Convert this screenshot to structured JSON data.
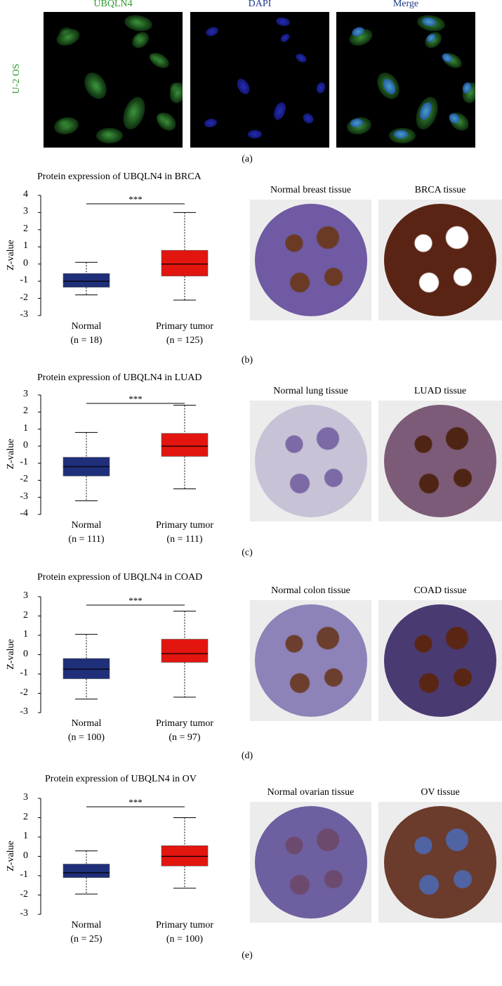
{
  "panel_a": {
    "channels": [
      "UBQLN4",
      "DAPI",
      "Merge"
    ],
    "channel_colors": [
      "#2e9a2e",
      "#1e3a8a",
      "#1e3a8a"
    ],
    "cell_line": "U-2 OS",
    "letter": "(a)"
  },
  "panels": [
    {
      "letter": "(b)",
      "tissues": [
        "Normal breast tissue",
        "BRCA tissue"
      ]
    },
    {
      "letter": "(c)",
      "tissues": [
        "Normal lung tissue",
        "LUAD tissue"
      ]
    },
    {
      "letter": "(d)",
      "tissues": [
        "Normal colon tissue",
        "COAD tissue"
      ]
    },
    {
      "letter": "(e)",
      "tissues": [
        "Normal ovarian tissue",
        "OV tissue"
      ]
    }
  ],
  "chart_data": [
    {
      "type": "boxplot",
      "title": "Protein expression of UBQLN4 in BRCA",
      "ylabel": "Z-value",
      "ylim": [
        -3,
        4
      ],
      "yticks": [
        "4",
        "3",
        "2",
        "1",
        "0",
        "-1",
        "-2",
        "-3"
      ],
      "significance": "***",
      "categories": [
        {
          "name": "Normal",
          "n": "(n = 18)",
          "min": -1.8,
          "q1": -1.35,
          "median": -1.0,
          "q3": -0.55,
          "max": 0.1,
          "color": "#1f2f7a"
        },
        {
          "name": "Primary tumor",
          "n": "(n = 125)",
          "min": -2.1,
          "q1": -0.7,
          "median": 0.0,
          "q3": 0.8,
          "max": 3.0,
          "color": "#e3150f"
        }
      ]
    },
    {
      "type": "boxplot",
      "title": "Protein expression of UBQLN4 in LUAD",
      "ylabel": "Z-value",
      "ylim": [
        -4,
        3
      ],
      "yticks": [
        "3",
        "2",
        "1",
        "0",
        "-1",
        "-2",
        "-3",
        "-4"
      ],
      "significance": "***",
      "categories": [
        {
          "name": "Normal",
          "n": "(n = 111)",
          "min": -3.2,
          "q1": -1.75,
          "median": -1.2,
          "q3": -0.65,
          "max": 0.8,
          "color": "#1f2f7a"
        },
        {
          "name": "Primary tumor",
          "n": "(n = 111)",
          "min": -2.5,
          "q1": -0.6,
          "median": 0.0,
          "q3": 0.75,
          "max": 2.4,
          "color": "#e3150f"
        }
      ]
    },
    {
      "type": "boxplot",
      "title": "Protein expression of UBQLN4 in COAD",
      "ylabel": "Z-value",
      "ylim": [
        -3,
        3
      ],
      "yticks": [
        "3",
        "2",
        "1",
        "0",
        "-1",
        "-2",
        "-3"
      ],
      "significance": "***",
      "categories": [
        {
          "name": "Normal",
          "n": "(n = 100)",
          "min": -2.3,
          "q1": -1.25,
          "median": -0.75,
          "q3": -0.2,
          "max": 1.05,
          "color": "#1f2f7a"
        },
        {
          "name": "Primary tumor",
          "n": "(n = 97)",
          "min": -2.2,
          "q1": -0.4,
          "median": 0.05,
          "q3": 0.8,
          "max": 2.25,
          "color": "#e3150f"
        }
      ]
    },
    {
      "type": "boxplot",
      "title": "Protein expression of UBQLN4 in OV",
      "ylabel": "Z-value",
      "ylim": [
        -3,
        3
      ],
      "yticks": [
        "3",
        "2",
        "1",
        "0",
        "-1",
        "-2",
        "-3"
      ],
      "significance": "***",
      "categories": [
        {
          "name": "Normal",
          "n": "(n = 25)",
          "min": -1.95,
          "q1": -1.1,
          "median": -0.85,
          "q3": -0.4,
          "max": 0.28,
          "color": "#1f2f7a"
        },
        {
          "name": "Primary tumor",
          "n": "(n = 100)",
          "min": -1.65,
          "q1": -0.5,
          "median": 0.0,
          "q3": 0.55,
          "max": 2.0,
          "color": "#e3150f"
        }
      ]
    }
  ]
}
